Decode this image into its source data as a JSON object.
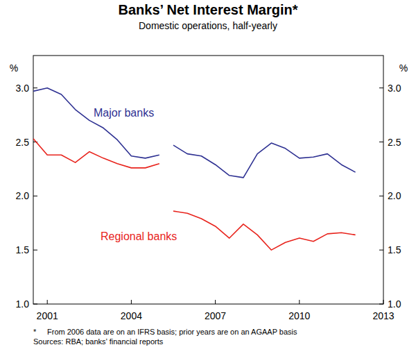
{
  "chart_data": {
    "type": "line",
    "title": "Banks’ Net Interest Margin*",
    "subtitle": "Domestic operations, half-yearly",
    "y_unit": "%",
    "x": [
      2000.5,
      2001.0,
      2001.5,
      2002.0,
      2002.5,
      2003.0,
      2003.5,
      2004.0,
      2004.5,
      2005.0,
      2005.25,
      2005.5,
      2006.0,
      2006.5,
      2007.0,
      2007.5,
      2008.0,
      2008.5,
      2009.0,
      2009.5,
      2010.0,
      2010.5,
      2011.0,
      2011.5,
      2012.0
    ],
    "series": [
      {
        "name": "Major banks",
        "color": "#2e3192",
        "values": [
          2.97,
          3.0,
          2.94,
          2.8,
          2.7,
          2.63,
          2.52,
          2.37,
          2.35,
          2.38,
          null,
          2.47,
          2.39,
          2.37,
          2.29,
          2.19,
          2.17,
          2.39,
          2.49,
          2.44,
          2.35,
          2.36,
          2.39,
          2.29,
          2.22
        ]
      },
      {
        "name": "Regional banks",
        "color": "#e8231c",
        "values": [
          2.53,
          2.38,
          2.38,
          2.31,
          2.41,
          2.35,
          2.3,
          2.26,
          2.26,
          2.3,
          null,
          1.86,
          1.84,
          1.79,
          1.72,
          1.61,
          1.74,
          1.64,
          1.5,
          1.57,
          1.61,
          1.58,
          1.65,
          1.66,
          1.64
        ]
      }
    ],
    "xlim": [
      2000.5,
      2013.0
    ],
    "xticks": [
      2001,
      2004,
      2007,
      2010,
      2013
    ],
    "ylim": [
      1.0,
      3.3
    ],
    "yticks": [
      {
        "value": 1.0,
        "label": "1.0"
      },
      {
        "value": 1.5,
        "label": "1.5"
      },
      {
        "value": 2.0,
        "label": "2.0"
      },
      {
        "value": 2.5,
        "label": "2.5"
      },
      {
        "value": 3.0,
        "label": "3.0"
      }
    ],
    "grid": false,
    "footnote": {
      "mark": "*",
      "text": "From 2006 data are on an IFRS basis; prior years are on an AGAAP basis"
    },
    "source": "Sources: RBA; banks’ financial reports"
  }
}
